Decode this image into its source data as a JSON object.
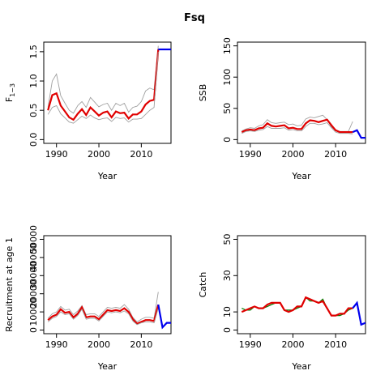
{
  "title": "Fsq",
  "colors": {
    "estimate": "#e00000",
    "bounds": "#a0a0a0",
    "projection": "#0000ee",
    "observed": "#008000"
  },
  "chart_data": [
    {
      "id": "f",
      "type": "line",
      "xlabel": "Year",
      "ylabel": "F",
      "ylabel_sub": "1−3",
      "xlim": [
        1987,
        2017
      ],
      "ylim": [
        0,
        1.6
      ],
      "xticks": [
        1990,
        2000,
        2010
      ],
      "yticks": [
        0.0,
        0.5,
        1.0,
        1.5
      ],
      "ytick_labels": [
        "0.0",
        "0.5",
        "1.0",
        "1.5"
      ],
      "series": [
        {
          "role": "upper",
          "x": [
            1988,
            1989,
            1990,
            1991,
            1992,
            1993,
            1994,
            1995,
            1996,
            1997,
            1998,
            1999,
            2000,
            2001,
            2002,
            2003,
            2004,
            2005,
            2006,
            2007,
            2008,
            2009,
            2010,
            2011,
            2012,
            2013,
            2014
          ],
          "y": [
            0.55,
            1.0,
            1.12,
            0.75,
            0.62,
            0.5,
            0.45,
            0.58,
            0.65,
            0.55,
            0.72,
            0.64,
            0.56,
            0.6,
            0.62,
            0.5,
            0.62,
            0.58,
            0.62,
            0.47,
            0.55,
            0.57,
            0.65,
            0.83,
            0.88,
            0.85,
            1.6
          ]
        },
        {
          "role": "estimate",
          "x": [
            1988,
            1989,
            1990,
            1991,
            1992,
            1993,
            1994,
            1995,
            1996,
            1997,
            1998,
            1999,
            2000,
            2001,
            2002,
            2003,
            2004,
            2005,
            2006,
            2007,
            2008,
            2009,
            2010,
            2011,
            2012,
            2013,
            2014
          ],
          "y": [
            0.5,
            0.76,
            0.79,
            0.58,
            0.48,
            0.38,
            0.34,
            0.44,
            0.52,
            0.42,
            0.55,
            0.48,
            0.41,
            0.46,
            0.48,
            0.38,
            0.48,
            0.45,
            0.46,
            0.36,
            0.43,
            0.43,
            0.48,
            0.6,
            0.66,
            0.68,
            1.54
          ]
        },
        {
          "role": "lower",
          "x": [
            1988,
            1989,
            1990,
            1991,
            1992,
            1993,
            1994,
            1995,
            1996,
            1997,
            1998,
            1999,
            2000,
            2001,
            2002,
            2003,
            2004,
            2005,
            2006,
            2007,
            2008,
            2009,
            2010,
            2011,
            2012,
            2013,
            2014
          ],
          "y": [
            0.43,
            0.55,
            0.58,
            0.44,
            0.37,
            0.3,
            0.28,
            0.34,
            0.4,
            0.36,
            0.42,
            0.37,
            0.34,
            0.36,
            0.37,
            0.31,
            0.38,
            0.36,
            0.37,
            0.3,
            0.35,
            0.35,
            0.36,
            0.43,
            0.5,
            0.55,
            1.5
          ]
        },
        {
          "role": "projection",
          "x": [
            2014,
            2015,
            2016,
            2017
          ],
          "y": [
            1.54,
            1.54,
            1.54,
            1.54
          ]
        }
      ]
    },
    {
      "id": "ssb",
      "type": "line",
      "xlabel": "Year",
      "ylabel": "SSB",
      "xlim": [
        1987,
        2017
      ],
      "ylim": [
        0,
        150
      ],
      "xticks": [
        1990,
        2000,
        2010
      ],
      "yticks": [
        0,
        50,
        100,
        150
      ],
      "ytick_labels": [
        "0",
        "50",
        "100",
        "150"
      ],
      "series": [
        {
          "role": "upper",
          "x": [
            1988,
            1989,
            1990,
            1991,
            1992,
            1993,
            1994,
            1995,
            1996,
            1997,
            1998,
            1999,
            2000,
            2001,
            2002,
            2003,
            2004,
            2005,
            2006,
            2007,
            2008,
            2009,
            2010,
            2011,
            2012,
            2013,
            2014
          ],
          "y": [
            14,
            17,
            19,
            18,
            22,
            24,
            32,
            27,
            26,
            27,
            28,
            24,
            25,
            22,
            23,
            33,
            36,
            35,
            37,
            39,
            32,
            20,
            15,
            13,
            13,
            13,
            29
          ]
        },
        {
          "role": "estimate",
          "x": [
            1988,
            1989,
            1990,
            1991,
            1992,
            1993,
            1994,
            1995,
            1996,
            1997,
            1998,
            1999,
            2000,
            2001,
            2002,
            2003,
            2004,
            2005,
            2006,
            2007,
            2008,
            2009,
            2010,
            2011,
            2012,
            2013,
            2014
          ],
          "y": [
            12,
            15,
            16,
            15,
            18,
            19,
            26,
            22,
            21,
            22,
            23,
            18,
            19,
            17,
            17,
            26,
            31,
            30,
            28,
            30,
            32,
            23,
            15,
            12,
            12,
            12,
            12
          ]
        },
        {
          "role": "lower",
          "x": [
            1988,
            1989,
            1990,
            1991,
            1992,
            1993,
            1994,
            1995,
            1996,
            1997,
            1998,
            1999,
            2000,
            2001,
            2002,
            2003,
            2004,
            2005,
            2006,
            2007,
            2008,
            2009,
            2010,
            2011,
            2012,
            2013,
            2014
          ],
          "y": [
            10,
            13,
            14,
            13,
            15,
            16,
            21,
            18,
            18,
            18,
            19,
            15,
            16,
            14,
            14,
            21,
            26,
            26,
            24,
            25,
            27,
            19,
            12,
            10,
            10,
            10,
            9
          ]
        },
        {
          "role": "projection",
          "x": [
            2014,
            2015,
            2016,
            2017
          ],
          "y": [
            12,
            15,
            3,
            3
          ]
        }
      ]
    },
    {
      "id": "rec",
      "type": "line",
      "xlabel": "Year",
      "ylabel": "Recruitment at age 1",
      "xlim": [
        1987,
        2017
      ],
      "ylim": [
        0,
        50000
      ],
      "xticks": [
        1990,
        2000,
        2010
      ],
      "yticks": [
        0,
        10000,
        20000,
        30000,
        40000,
        50000
      ],
      "ytick_labels": [
        "0",
        "10000",
        "20000",
        "30000",
        "40000",
        "50000"
      ],
      "series": [
        {
          "role": "upper",
          "x": [
            1988,
            1989,
            1990,
            1991,
            1992,
            1993,
            1994,
            1995,
            1996,
            1997,
            1998,
            1999,
            2000,
            2001,
            2002,
            2003,
            2004,
            2005,
            2006,
            2007,
            2008,
            2009,
            2010,
            2011,
            2012,
            2013,
            2014
          ],
          "y": [
            6500,
            9000,
            10000,
            13000,
            11000,
            11500,
            8500,
            10500,
            13500,
            8500,
            9000,
            9000,
            7500,
            10000,
            12500,
            12000,
            12500,
            12000,
            14000,
            11500,
            7000,
            4500,
            6000,
            7000,
            7000,
            6500,
            21000
          ]
        },
        {
          "role": "estimate",
          "x": [
            1988,
            1989,
            1990,
            1991,
            1992,
            1993,
            1994,
            1995,
            1996,
            1997,
            1998,
            1999,
            2000,
            2001,
            2002,
            2003,
            2004,
            2005,
            2006,
            2007,
            2008,
            2009,
            2010,
            2011,
            2012,
            2013,
            2014
          ],
          "y": [
            5500,
            7500,
            8500,
            11500,
            9500,
            10000,
            7000,
            9000,
            12500,
            7000,
            7500,
            7500,
            6000,
            8500,
            11000,
            10500,
            11000,
            10500,
            12000,
            10000,
            6000,
            3500,
            4500,
            5500,
            5500,
            5000,
            14000
          ]
        },
        {
          "role": "lower",
          "x": [
            1988,
            1989,
            1990,
            1991,
            1992,
            1993,
            1994,
            1995,
            1996,
            1997,
            1998,
            1999,
            2000,
            2001,
            2002,
            2003,
            2004,
            2005,
            2006,
            2007,
            2008,
            2009,
            2010,
            2011,
            2012,
            2013,
            2014
          ],
          "y": [
            4500,
            6500,
            7500,
            10000,
            8500,
            9000,
            6000,
            8000,
            11500,
            6000,
            6500,
            6500,
            5000,
            7500,
            10000,
            9500,
            10000,
            9500,
            10500,
            9000,
            5000,
            3000,
            4000,
            4500,
            4500,
            4000,
            12000
          ]
        },
        {
          "role": "projection",
          "x": [
            2014,
            2015,
            2016,
            2017
          ],
          "y": [
            14000,
            1500,
            4000,
            4000
          ]
        }
      ]
    },
    {
      "id": "catch",
      "type": "line",
      "xlabel": "Year",
      "ylabel": "Catch",
      "xlim": [
        1987,
        2017
      ],
      "ylim": [
        0,
        50
      ],
      "xticks": [
        1990,
        2000,
        2010
      ],
      "yticks": [
        0,
        10,
        30,
        50
      ],
      "ytick_labels": [
        "0",
        "10",
        "30",
        "50"
      ],
      "series": [
        {
          "role": "observed",
          "x": [
            1988,
            1989,
            1990,
            1991,
            1992,
            1993,
            1994,
            1995,
            1996,
            1997,
            1998,
            1999,
            2000,
            2001,
            2002,
            2003,
            2004,
            2005,
            2006,
            2007,
            2008,
            2009,
            2010,
            2011,
            2012,
            2013,
            2014
          ],
          "y": [
            12,
            11,
            11,
            13,
            12,
            12,
            13,
            14,
            15,
            15,
            11,
            11,
            11,
            12,
            13,
            18,
            16,
            16,
            15,
            17,
            12,
            8,
            8,
            8,
            9,
            11,
            12
          ]
        },
        {
          "role": "estimate",
          "x": [
            1988,
            1989,
            1990,
            1991,
            1992,
            1993,
            1994,
            1995,
            1996,
            1997,
            1998,
            1999,
            2000,
            2001,
            2002,
            2003,
            2004,
            2005,
            2006,
            2007,
            2008,
            2009,
            2010,
            2011,
            2012,
            2013,
            2014
          ],
          "y": [
            10,
            11,
            12,
            13,
            12,
            12,
            14,
            15,
            15,
            15,
            11,
            10,
            11,
            13,
            13,
            18,
            17,
            16,
            15,
            16,
            12,
            8,
            8,
            9,
            9,
            12,
            12
          ]
        },
        {
          "role": "projection",
          "x": [
            2014,
            2015,
            2016,
            2017
          ],
          "y": [
            12,
            15,
            3,
            4
          ]
        }
      ]
    }
  ]
}
